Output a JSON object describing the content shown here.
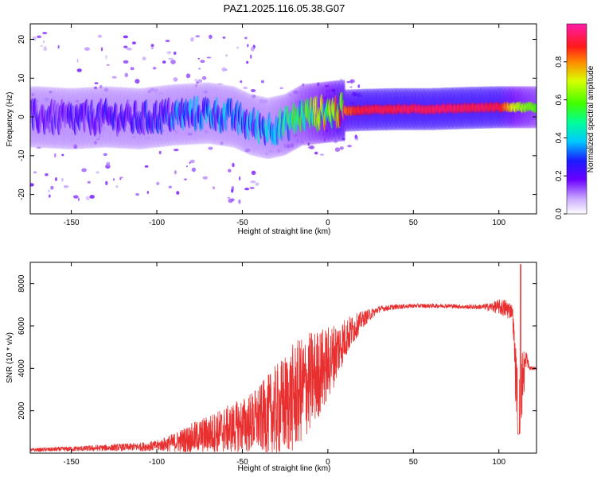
{
  "title": "PAZ1.2025.116.05.38.G07",
  "chart_data": [
    {
      "type": "heatmap",
      "xlabel": "Height of straight line (km)",
      "ylabel": "Frequency (Hz)",
      "xlim": [
        -174,
        122
      ],
      "ylim": [
        -25,
        24
      ],
      "xticks": [
        -150,
        -100,
        -50,
        0,
        50,
        100
      ],
      "yticks": [
        -20,
        -10,
        0,
        10,
        20
      ],
      "colorbar": {
        "label": "Normalized spectral amplitude",
        "ticks": [
          "0.0",
          "0.2",
          "0.4",
          "0.6",
          "0.8"
        ],
        "range": [
          0,
          1
        ]
      },
      "ridge": {
        "x": [
          -170,
          -150,
          -130,
          -110,
          -90,
          -70,
          -55,
          -45,
          -35,
          -25,
          -15,
          -5,
          5,
          20,
          40,
          60,
          80,
          100,
          110,
          122
        ],
        "freq": [
          0,
          -0.5,
          0,
          -0.5,
          0.5,
          1,
          0,
          -2,
          -3,
          -2,
          0.5,
          1,
          1.5,
          1.8,
          2,
          2,
          2.3,
          2.5,
          2.5,
          2.5
        ],
        "amplitude": [
          0.2,
          0.22,
          0.22,
          0.25,
          0.3,
          0.35,
          0.35,
          0.35,
          0.4,
          0.45,
          0.55,
          0.65,
          0.8,
          0.92,
          0.95,
          0.95,
          0.95,
          0.93,
          0.7,
          0.6
        ]
      }
    },
    {
      "type": "line",
      "xlabel": "Height of straight line (km)",
      "ylabel": "SNR (10 * v/v)",
      "xlim": [
        -174,
        122
      ],
      "ylim": [
        0,
        9000
      ],
      "xticks": [
        -150,
        -100,
        -50,
        0,
        50,
        100
      ],
      "yticks": [
        2000,
        4000,
        6000,
        8000
      ],
      "color": "#e83030",
      "envelope_x": [
        -174,
        -150,
        -130,
        -110,
        -100,
        -90,
        -80,
        -70,
        -60,
        -50,
        -40,
        -30,
        -20,
        -10,
        0,
        10,
        20,
        30,
        40,
        50,
        60,
        70,
        80,
        90,
        95,
        100,
        105,
        108,
        110,
        112,
        114,
        116,
        118,
        122
      ],
      "envelope_mean": [
        150,
        200,
        250,
        300,
        350,
        500,
        700,
        900,
        1100,
        1300,
        1600,
        2000,
        2600,
        3400,
        4200,
        5400,
        6300,
        6800,
        6900,
        6950,
        6950,
        6950,
        6900,
        6900,
        6900,
        6900,
        6800,
        6700,
        3500,
        2500,
        3500,
        4500,
        4000,
        4000
      ],
      "envelope_spread": [
        80,
        120,
        150,
        200,
        250,
        450,
        700,
        900,
        1100,
        1300,
        1600,
        2200,
        2600,
        2400,
        1800,
        1000,
        400,
        150,
        120,
        100,
        100,
        100,
        100,
        120,
        200,
        350,
        500,
        300,
        1500,
        2000,
        1500,
        400,
        100,
        60
      ]
    }
  ]
}
